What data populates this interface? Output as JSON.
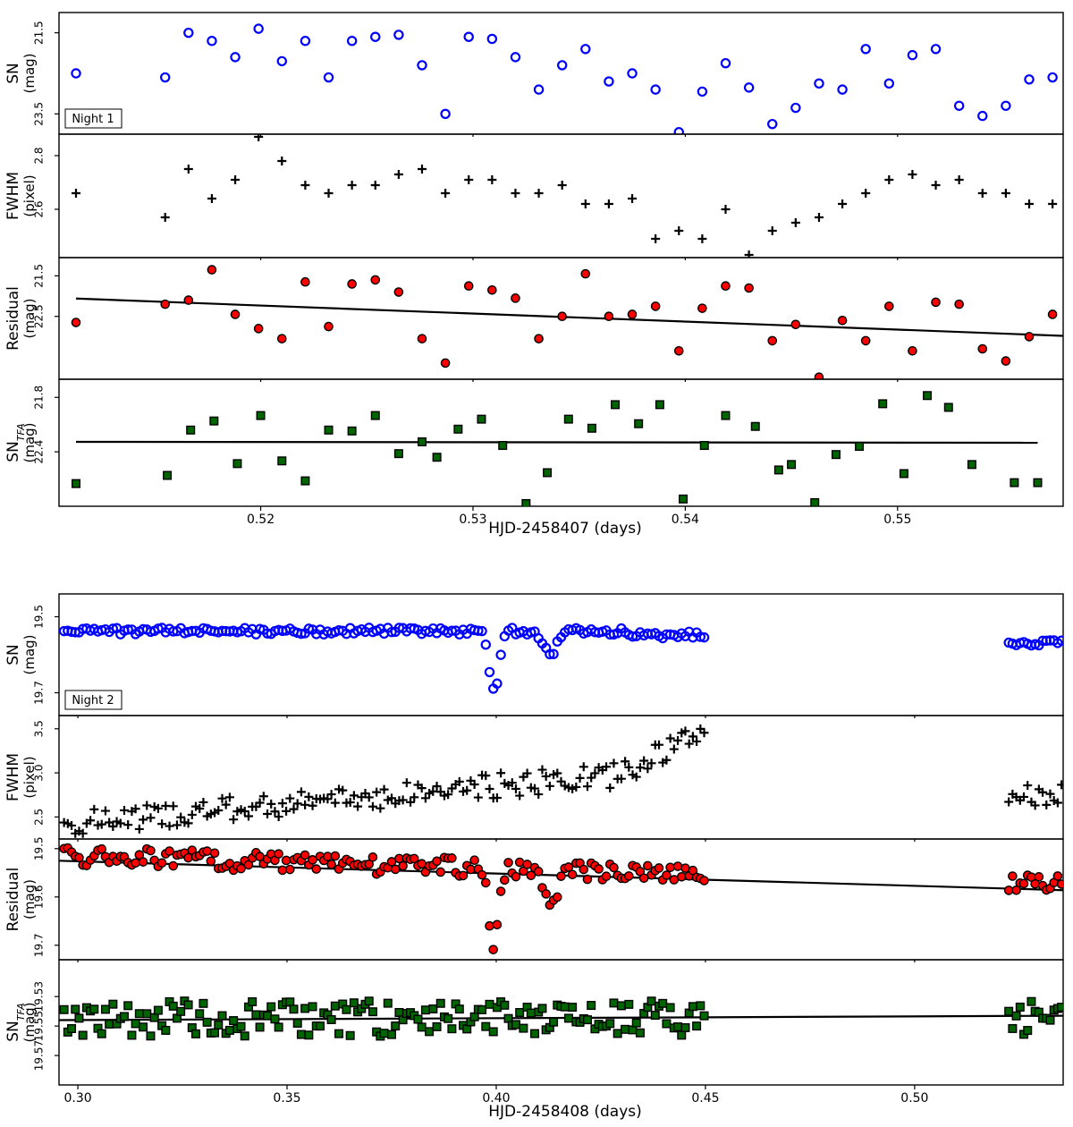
{
  "chart_data": [
    {
      "type": "scatter",
      "night_label": "Night 1",
      "xlabel": "HJD-2458407 (days)",
      "xlim": [
        0.5105,
        0.5578
      ],
      "xticks": [
        "0.52",
        "0.53",
        "0.54",
        "0.55"
      ],
      "x": [
        0.5113,
        0.5155,
        0.5166,
        0.5177,
        0.5188,
        0.5199,
        0.521,
        0.5221,
        0.5232,
        0.5243,
        0.5254,
        0.5265,
        0.5276,
        0.5287,
        0.5298,
        0.5309,
        0.532,
        0.5331,
        0.5342,
        0.5353,
        0.5364,
        0.5375,
        0.5386,
        0.5397,
        0.5408,
        0.5419,
        0.543,
        0.5441,
        0.5452,
        0.5463,
        0.5474,
        0.5485,
        0.5496,
        0.5507,
        0.5518,
        0.5529,
        0.554,
        0.5551,
        0.5562,
        0.5573
      ],
      "panels": [
        {
          "name": "SN",
          "ylabel": "SN",
          "yunit": "(mag)",
          "yticks": [
            "21.5",
            "23.5"
          ],
          "ytick_values": [
            21.5,
            23.5
          ],
          "ylim": [
            21.0,
            24.0
          ],
          "inverted": true,
          "marker": "open-circle",
          "color": "#0000ff",
          "y": [
            22.5,
            22.6,
            21.5,
            21.7,
            22.1,
            21.4,
            22.2,
            21.7,
            22.6,
            21.7,
            21.6,
            21.55,
            22.3,
            23.5,
            21.6,
            21.65,
            22.1,
            22.9,
            22.3,
            21.9,
            22.7,
            22.5,
            22.9,
            23.95,
            22.95,
            22.25,
            22.85,
            23.75,
            23.35,
            22.75,
            22.9,
            21.9,
            22.75,
            22.05,
            21.9,
            23.3,
            23.55,
            23.3,
            22.65,
            22.6
          ],
          "trend": null
        },
        {
          "name": "FWHM",
          "ylabel": "FWHM",
          "yunit": "(pixel)",
          "yticks": [
            "2.6",
            "2.8"
          ],
          "ytick_values": [
            2.6,
            2.8
          ],
          "ylim": [
            2.42,
            2.88
          ],
          "inverted": false,
          "marker": "plus",
          "color": "#000000",
          "y": [
            2.66,
            2.57,
            2.75,
            2.64,
            2.71,
            2.87,
            2.78,
            2.69,
            2.66,
            2.69,
            2.69,
            2.73,
            2.75,
            2.66,
            2.71,
            2.71,
            2.66,
            2.66,
            2.69,
            2.62,
            2.62,
            2.64,
            2.49,
            2.52,
            2.49,
            2.6,
            2.43,
            2.52,
            2.55,
            2.57,
            2.62,
            2.66,
            2.71,
            2.73,
            2.69,
            2.71,
            2.66,
            2.66,
            2.62,
            2.62
          ],
          "trend": null
        },
        {
          "name": "Residual",
          "ylabel": "Residual",
          "yunit": "(mag)",
          "yticks": [
            "21.5",
            "22.5"
          ],
          "ytick_values": [
            21.5,
            22.5
          ],
          "ylim": [
            21.05,
            24.05
          ],
          "inverted": true,
          "marker": "filled-circle",
          "color": "#ff0000",
          "y": [
            22.65,
            22.2,
            22.1,
            21.35,
            22.45,
            22.8,
            23.05,
            21.65,
            22.75,
            21.7,
            21.6,
            21.9,
            23.05,
            23.65,
            21.75,
            21.85,
            22.05,
            23.05,
            22.5,
            21.45,
            22.5,
            22.45,
            22.25,
            23.35,
            22.3,
            21.75,
            21.8,
            23.1,
            22.7,
            24.0,
            22.6,
            23.1,
            22.25,
            23.35,
            22.15,
            22.2,
            23.3,
            23.6,
            23.0,
            22.45
          ],
          "trend": [
            [
              0.5113,
              22.06
            ],
            [
              0.5578,
              22.98
            ]
          ]
        },
        {
          "name": "SNTFA",
          "ylabel": "SN",
          "ylabel_sub": "TFA",
          "yunit": "(mag)",
          "yticks": [
            "21.8",
            "22.4"
          ],
          "ytick_values": [
            21.8,
            22.4
          ],
          "ylim": [
            21.6,
            23.0
          ],
          "inverted": true,
          "marker": "square",
          "color": "#006400",
          "y": [
            22.75,
            22.66,
            22.16,
            22.06,
            22.53,
            22.0,
            22.5,
            22.72,
            22.16,
            22.17,
            22.0,
            22.42,
            22.29,
            22.46,
            22.15,
            22.04,
            22.33,
            22.97,
            22.63,
            22.04,
            22.14,
            21.88,
            22.09,
            21.88,
            22.92,
            22.33,
            22.0,
            22.12,
            22.6,
            22.54,
            22.96,
            22.43,
            22.34,
            21.87,
            22.64,
            21.78,
            21.91,
            22.54,
            22.74,
            22.74
          ]
        },
        {
          "dummy": true
        }
      ],
      "x_sntfa": [
        0.5113,
        0.5156,
        0.5167,
        0.5178,
        0.5189,
        0.52,
        0.521,
        0.5221,
        0.5232,
        0.5243,
        0.5254,
        0.5265,
        0.5276,
        0.5283,
        0.5293,
        0.5304,
        0.5314,
        0.5325,
        0.5335,
        0.5345,
        0.5356,
        0.5367,
        0.5378,
        0.5388,
        0.5399,
        0.5409,
        0.5419,
        0.5433,
        0.5444,
        0.545,
        0.5461,
        0.5471,
        0.5482,
        0.5493,
        0.5503,
        0.5514,
        0.5524,
        0.5535,
        0.5555,
        0.5566
      ],
      "sntfa_trend": [
        [
          0.5113,
          22.29
        ],
        [
          0.5566,
          22.3
        ]
      ]
    },
    {
      "type": "scatter",
      "night_label": "Night 2",
      "xlabel": "HJD-2458408 (days)",
      "xlim": [
        0.2955,
        0.5355
      ],
      "xticks": [
        "0.30",
        "0.35",
        "0.40",
        "0.45",
        "0.50"
      ],
      "panels": [
        {
          "name": "SN",
          "ylabel": "SN",
          "yunit": "(mag)",
          "yticks": [
            "19.5",
            "19.7"
          ],
          "ytick_values": [
            19.5,
            19.7
          ],
          "ylim": [
            19.44,
            19.76
          ],
          "inverted": true,
          "marker": "open-circle",
          "color": "#0000ff",
          "base": 19.545,
          "dip_depth": 0.16,
          "late": 19.57,
          "scatter": 0.007
        },
        {
          "name": "FWHM",
          "ylabel": "FWHM",
          "yunit": "(pixel)",
          "yticks": [
            "2.5",
            "3.0",
            "3.5"
          ],
          "ytick_values": [
            2.5,
            3.0,
            3.5
          ],
          "ylim": [
            2.25,
            3.65
          ],
          "inverted": false,
          "marker": "plus",
          "color": "#000000"
        },
        {
          "name": "Residual",
          "ylabel": "Residual",
          "yunit": "(mag)",
          "yticks": [
            "19.5",
            "19.6",
            "19.7"
          ],
          "ytick_values": [
            19.5,
            19.6,
            19.7
          ],
          "ylim": [
            19.48,
            19.73
          ],
          "inverted": true,
          "marker": "filled-circle",
          "color": "#ff0000",
          "trend": [
            [
              0.2955,
              19.525
            ],
            [
              0.5355,
              19.586
            ]
          ]
        },
        {
          "name": "SNTFA",
          "ylabel": "SN",
          "ylabel_sub": "TFA",
          "yunit": "(mag)",
          "yticks": [
            "19.53",
            "19.55",
            "19.57"
          ],
          "ytick_values": [
            19.53,
            19.55,
            19.57
          ],
          "ylim": [
            19.505,
            19.59
          ],
          "inverted": true,
          "marker": "square",
          "color": "#006400",
          "trend": [
            [
              0.2955,
              19.546
            ],
            [
              0.5355,
              19.543
            ]
          ]
        }
      ]
    }
  ],
  "colors": {
    "blue": "#0000ff",
    "red": "#ff0000",
    "green": "#006400",
    "black": "#000000"
  }
}
